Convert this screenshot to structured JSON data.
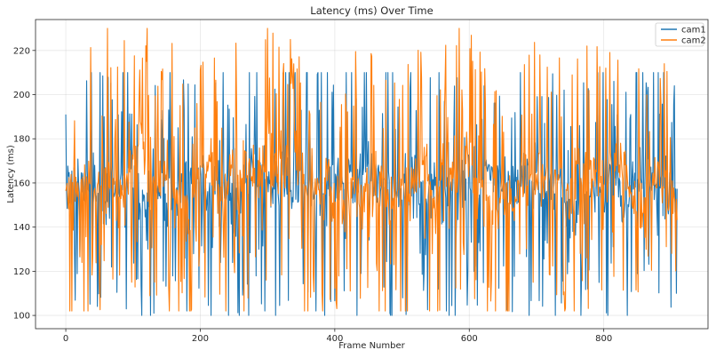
{
  "chart_data": {
    "type": "line",
    "title": "Latency (ms) Over Time",
    "xlabel": "Frame Number",
    "ylabel": "Latency (ms)",
    "xlim": [
      -45,
      955
    ],
    "ylim": [
      94,
      234
    ],
    "xticks": [
      0,
      200,
      400,
      600,
      800
    ],
    "yticks": [
      100,
      120,
      140,
      160,
      180,
      200,
      220
    ],
    "grid": true,
    "legend_position": "top-right",
    "n_frames": 910,
    "series": [
      {
        "name": "cam1",
        "color": "#1f77b4",
        "approx_mean": 160,
        "approx_range": [
          100,
          210
        ],
        "notable_points": [
          {
            "x": 0,
            "y": 191
          },
          {
            "x": 131,
            "y": 101
          },
          {
            "x": 180,
            "y": 102
          },
          {
            "x": 272,
            "y": 100
          },
          {
            "x": 296,
            "y": 102
          },
          {
            "x": 566,
            "y": 102
          },
          {
            "x": 908,
            "y": 110
          }
        ]
      },
      {
        "name": "cam2",
        "color": "#ff7f0e",
        "approx_mean": 160,
        "approx_range": [
          102,
          230
        ],
        "notable_points": [
          {
            "x": 62,
            "y": 230
          },
          {
            "x": 334,
            "y": 225
          },
          {
            "x": 382,
            "y": 102
          },
          {
            "x": 775,
            "y": 222
          },
          {
            "x": 890,
            "y": 214
          }
        ]
      }
    ]
  }
}
